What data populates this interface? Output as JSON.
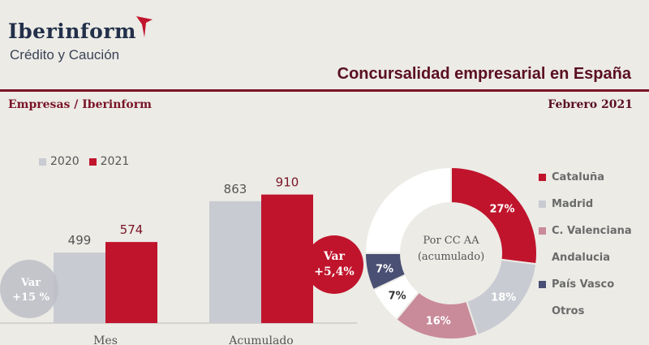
{
  "header": {
    "brand": "Iberinform",
    "brand_sub": "Crédito y Caución",
    "title": "Concursalidad empresarial en España",
    "source": "Empresas / Iberinform",
    "date": "Febrero 2021"
  },
  "colors": {
    "c2020": "#c9cbd3",
    "c2021": "#c0142c",
    "accent": "#7a1426"
  },
  "chart_data": [
    {
      "type": "bar",
      "categories": [
        "Mes",
        "Acumulado"
      ],
      "series": [
        {
          "name": "2020",
          "values": [
            499,
            863
          ]
        },
        {
          "name": "2021",
          "values": [
            574,
            910
          ]
        }
      ],
      "value_labels": [
        "499",
        "574",
        "863",
        "910"
      ],
      "annotations": {
        "mes": [
          "Var",
          "+15 %"
        ],
        "acumulado": [
          "Var",
          "+5,4%"
        ]
      },
      "legend": "top-left"
    },
    {
      "type": "pie",
      "center_label": [
        "Por CC AA",
        "(acumulado)"
      ],
      "slices": [
        {
          "name": "Cataluña",
          "value": 27,
          "label": "27%",
          "color": "#c0142c"
        },
        {
          "name": "Madrid",
          "value": 18,
          "label": "18%",
          "color": "#c9cbd3"
        },
        {
          "name": "C. Valenciana",
          "value": 16,
          "label": "16%",
          "color": "#c98a9a"
        },
        {
          "name": "Andalucia",
          "value": 7,
          "label": "7%",
          "color": "#ffffff"
        },
        {
          "name": "País Vasco",
          "value": 7,
          "label": "7%",
          "color": "#4a4f74"
        },
        {
          "name": "Otros",
          "value": 25,
          "label": "",
          "color": "#ffffff"
        }
      ],
      "legend": "right"
    }
  ]
}
